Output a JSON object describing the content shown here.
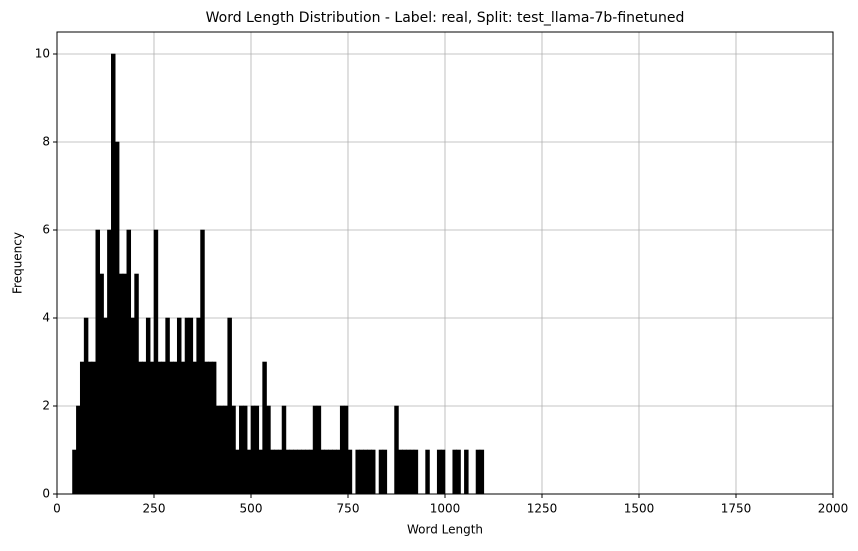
{
  "chart_data": {
    "type": "histogram",
    "title": "Word Length Distribution - Label: real, Split: test_llama-7b-finetuned",
    "x_label": "Word Length",
    "y_label": "Frequency",
    "bins": [
      40,
      50,
      60,
      70,
      80,
      90,
      100,
      110,
      120,
      130,
      140,
      150,
      160,
      170,
      180,
      190,
      200,
      210,
      220,
      230,
      240,
      250,
      260,
      270,
      280,
      290,
      300,
      310,
      320,
      330,
      340,
      350,
      360,
      370,
      380,
      390,
      400,
      410,
      420,
      430,
      440,
      450,
      460,
      470,
      480,
      490,
      500,
      510,
      520,
      530,
      540,
      550,
      560,
      570,
      580,
      590,
      600,
      610,
      620,
      630,
      640,
      650,
      660,
      670,
      680,
      690,
      700,
      710,
      720,
      730,
      740,
      750,
      760,
      770,
      780,
      790,
      800,
      810,
      820,
      830,
      840,
      850,
      860,
      870,
      880,
      890,
      900,
      910,
      920,
      930,
      940,
      950,
      960,
      970,
      980,
      990,
      1000,
      1010,
      1020,
      1030,
      1040,
      1050,
      1060,
      1070,
      1080,
      1090,
      1100
    ],
    "values": [
      1,
      2,
      3,
      4,
      3,
      3,
      6,
      5,
      4,
      6,
      10,
      8,
      5,
      5,
      6,
      4,
      5,
      3,
      3,
      4,
      3,
      6,
      3,
      3,
      4,
      3,
      3,
      4,
      3,
      4,
      4,
      3,
      4,
      6,
      3,
      3,
      3,
      2,
      2,
      2,
      4,
      2,
      1,
      2,
      2,
      1,
      2,
      2,
      1,
      3,
      2,
      1,
      1,
      1,
      2,
      1,
      1,
      1,
      1,
      1,
      1,
      1,
      2,
      2,
      1,
      1,
      1,
      1,
      1,
      2,
      2,
      1,
      0,
      1,
      1,
      1,
      1,
      1,
      0,
      1,
      1,
      0,
      0,
      2,
      1,
      1,
      1,
      1,
      1,
      0,
      0,
      1,
      0,
      0,
      1,
      1,
      0,
      0,
      1,
      1,
      0,
      1,
      0,
      0,
      1,
      1
    ],
    "color": "#000000",
    "xlim": [
      0,
      2000
    ],
    "xticks": [
      0,
      250,
      500,
      750,
      1000,
      1250,
      1500,
      1750,
      2000
    ],
    "ylim": [
      0,
      10.5
    ],
    "yticks": [
      0,
      2,
      4,
      6,
      8,
      10
    ],
    "grid": true
  }
}
